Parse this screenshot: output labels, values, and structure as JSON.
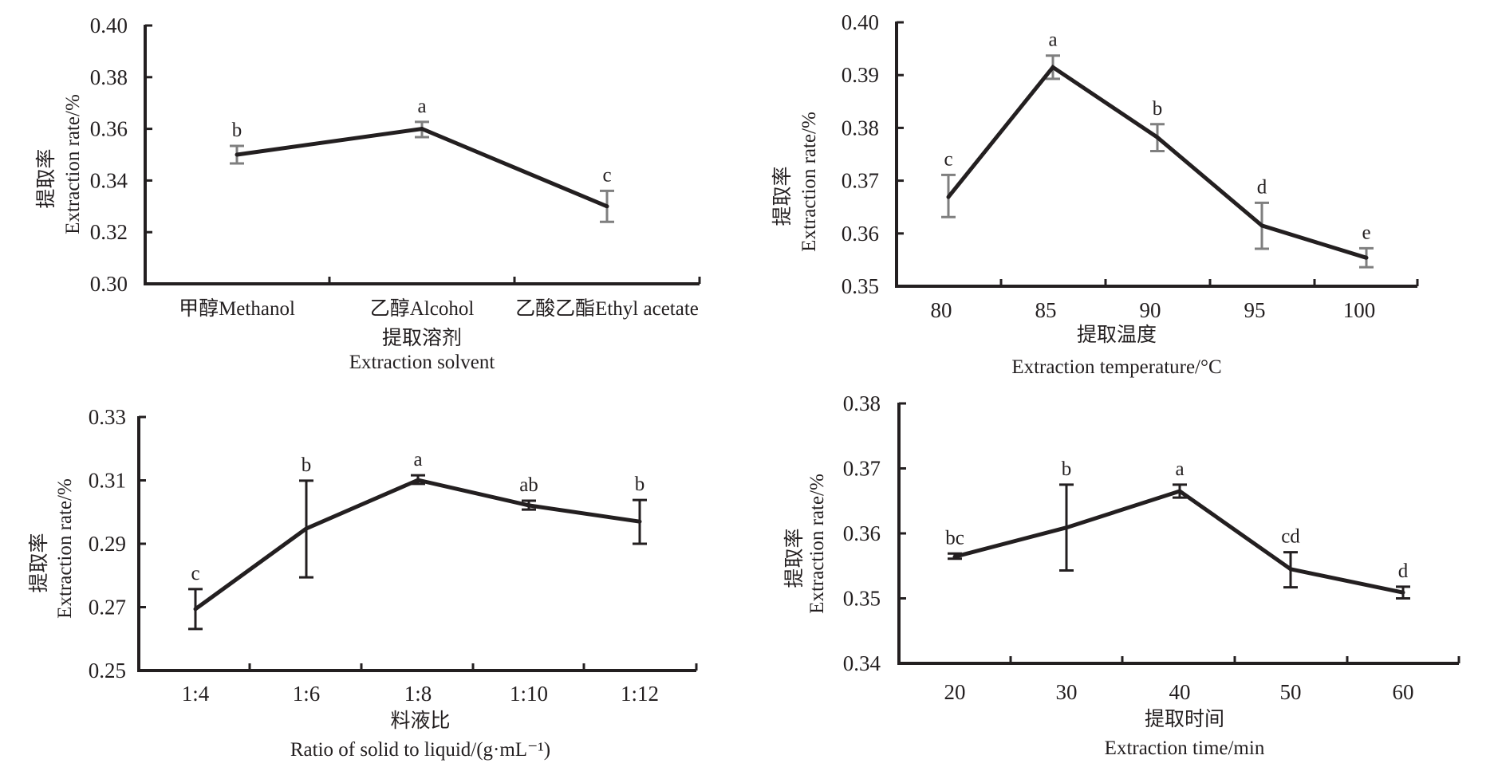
{
  "figure": {
    "colors": {
      "line": "#231f20",
      "axis": "#231f20",
      "error_gray": "#7f7f7f",
      "error_black": "#231f20",
      "background": "#ffffff"
    }
  },
  "chart_data": [
    {
      "id": "solvent",
      "type": "line",
      "ylabel_cn": "提取率",
      "ylabel_en": "Extraction rate/%",
      "xlabel_cn": "提取溶剂",
      "xlabel_en": "Extraction solvent",
      "categories": [
        "甲醇Methanol",
        "乙醇Alcohol",
        "乙酸乙酯Ethyl acetate"
      ],
      "values": [
        0.35,
        0.36,
        0.33
      ],
      "error_low": [
        0.3466,
        0.3568,
        0.324
      ],
      "error_high": [
        0.3534,
        0.3627,
        0.336
      ],
      "significance": [
        "b",
        "a",
        "c"
      ],
      "error_color": "gray",
      "ylim": [
        0.3,
        0.4
      ],
      "yticks": [
        "0.30",
        "0.32",
        "0.34",
        "0.36",
        "0.38",
        "0.40"
      ],
      "grid": false
    },
    {
      "id": "temperature",
      "type": "line",
      "ylabel_cn": "提取率",
      "ylabel_en": "Extraction rate/%",
      "xlabel_cn": "提取温度",
      "xlabel_en": "Extraction temperature/°C",
      "categories": [
        "80",
        "85",
        "90",
        "95",
        "100"
      ],
      "values": [
        0.3669,
        0.3915,
        0.3782,
        0.3615,
        0.3554
      ],
      "error_low": [
        0.3631,
        0.3893,
        0.3756,
        0.3571,
        0.3536
      ],
      "error_high": [
        0.3711,
        0.3937,
        0.3807,
        0.3658,
        0.3572
      ],
      "significance": [
        "c",
        "a",
        "b",
        "d",
        "e"
      ],
      "error_color": "gray",
      "ylim": [
        0.35,
        0.4
      ],
      "yticks": [
        "0.35",
        "0.36",
        "0.37",
        "0.38",
        "0.39",
        "0.40"
      ],
      "grid": false
    },
    {
      "id": "ratio",
      "type": "line",
      "ylabel_cn": "提取率",
      "ylabel_en": "Extraction rate/%",
      "xlabel_cn": "料液比",
      "xlabel_en": "Ratio of solid to liquid/(g·mL⁻¹)",
      "categories": [
        "1:4",
        "1:6",
        "1:8",
        "1:10",
        "1:12"
      ],
      "values": [
        0.2694,
        0.2948,
        0.3101,
        0.3021,
        0.297
      ],
      "error_low": [
        0.2631,
        0.2794,
        0.3089,
        0.3008,
        0.29
      ],
      "error_high": [
        0.2757,
        0.3099,
        0.3116,
        0.3036,
        0.3038
      ],
      "significance": [
        "c",
        "b",
        "a",
        "ab",
        "b"
      ],
      "error_color": "black",
      "ylim": [
        0.25,
        0.33
      ],
      "yticks": [
        "0.25",
        "0.27",
        "0.29",
        "0.31",
        "0.33"
      ],
      "grid": false
    },
    {
      "id": "time",
      "type": "line",
      "ylabel_cn": "提取率",
      "ylabel_en": "Extraction rate/%",
      "xlabel_cn": "提取时间",
      "xlabel_en": "Extraction time/min",
      "categories": [
        "20",
        "30",
        "40",
        "50",
        "60"
      ],
      "values": [
        0.3564,
        0.3609,
        0.3665,
        0.3545,
        0.3509
      ],
      "error_low": [
        0.3561,
        0.3543,
        0.3655,
        0.3517,
        0.35
      ],
      "error_high": [
        0.3569,
        0.3675,
        0.3675,
        0.3571,
        0.3518
      ],
      "significance": [
        "bc",
        "b",
        "a",
        "cd",
        "d"
      ],
      "error_color": "black",
      "ylim": [
        0.34,
        0.38
      ],
      "yticks": [
        "0.34",
        "0.35",
        "0.36",
        "0.37",
        "0.38"
      ],
      "grid": false
    }
  ]
}
